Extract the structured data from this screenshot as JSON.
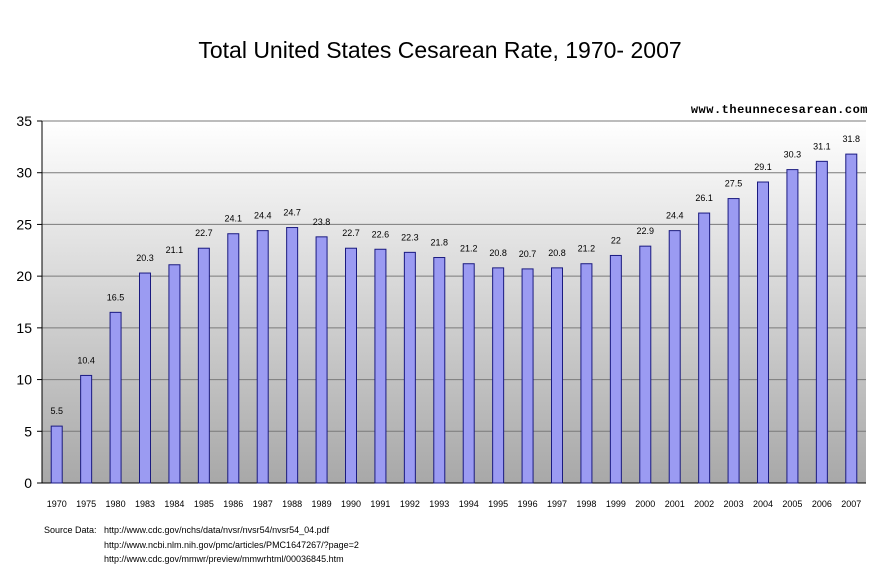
{
  "colors": {
    "bar_fill": "#9b9bf2",
    "bar_stroke": "#1a1a80",
    "plot_top": "#ffffff",
    "plot_bottom": "#a8a8a8",
    "grid": "#7a7a7a"
  },
  "chart_data": {
    "type": "bar",
    "title": "Total United States Cesarean Rate, 1970- 2007",
    "watermark": "www.theunnecesarean.com",
    "xlabel": "",
    "ylabel": "",
    "ylim": [
      0,
      35
    ],
    "yticks": [
      0,
      5,
      10,
      15,
      20,
      25,
      30,
      35
    ],
    "grid": true,
    "legend": "none",
    "categories": [
      "1970",
      "1975",
      "1980",
      "1983",
      "1984",
      "1985",
      "1986",
      "1987",
      "1988",
      "1989",
      "1990",
      "1991",
      "1992",
      "1993",
      "1994",
      "1995",
      "1996",
      "1997",
      "1998",
      "1999",
      "2000",
      "2001",
      "2002",
      "2003",
      "2004",
      "2005",
      "2006",
      "2007"
    ],
    "values": [
      5.5,
      10.4,
      16.5,
      20.3,
      21.1,
      22.7,
      24.1,
      24.4,
      24.7,
      23.8,
      22.7,
      22.6,
      22.3,
      21.8,
      21.2,
      20.8,
      20.7,
      20.8,
      21.2,
      22,
      22.9,
      24.4,
      26.1,
      27.5,
      29.1,
      30.3,
      31.1,
      31.8
    ]
  },
  "source": {
    "label": "Source Data:",
    "urls": [
      "http://www.cdc.gov/nchs/data/nvsr/nvsr54/nvsr54_04.pdf",
      "http://www.ncbi.nlm.nih.gov/pmc/articles/PMC1647267/?page=2",
      "http://www.cdc.gov/mmwr/preview/mmwrhtml/00036845.htm"
    ]
  }
}
